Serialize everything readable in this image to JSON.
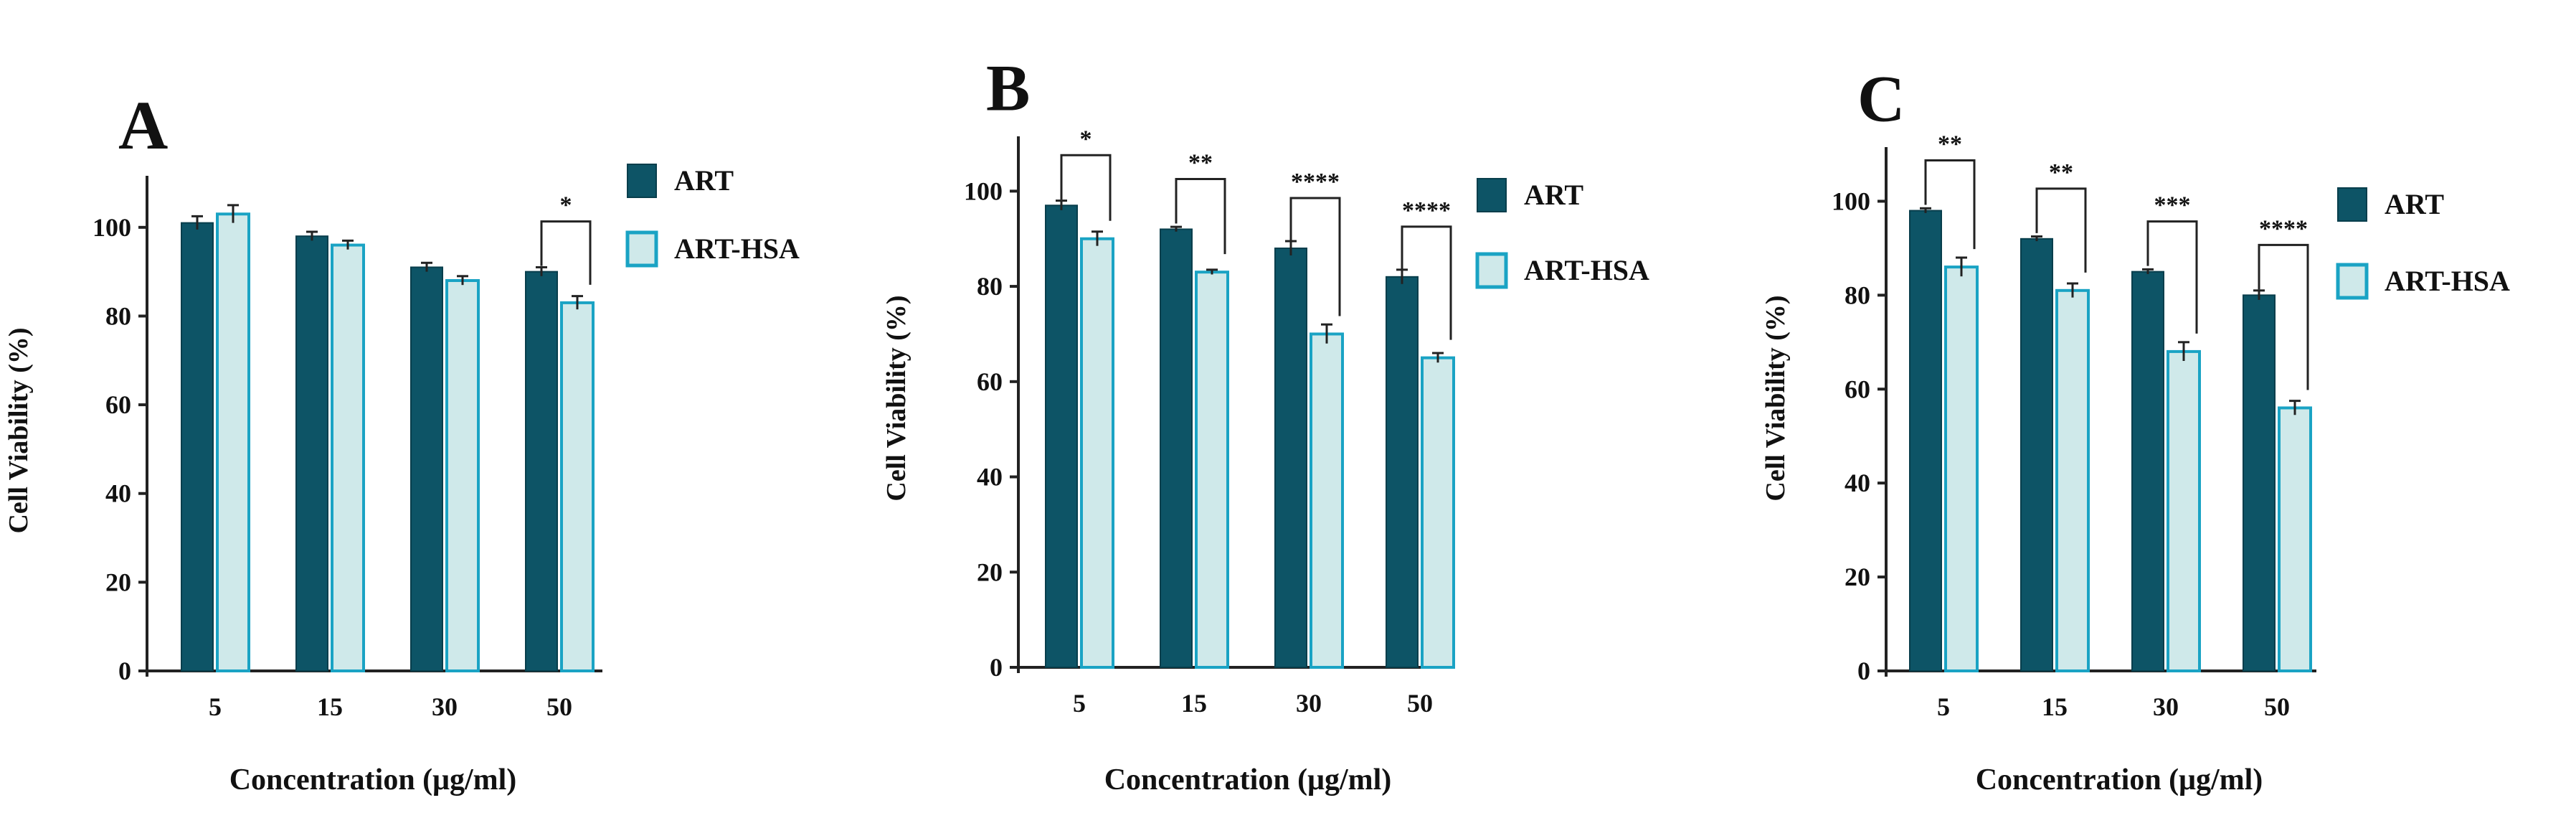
{
  "colors": {
    "art": "#0d5466",
    "art_edge": "#083e4c",
    "art_hsa_fill": "#cfe9ea",
    "art_hsa_edge": "#1aa3c4",
    "axis": "#222222",
    "text": "#111111"
  },
  "chart_data": [
    {
      "type": "bar",
      "panel": "A",
      "categories": [
        "5",
        "15",
        "30",
        "50"
      ],
      "series": [
        {
          "name": "ART",
          "values": [
            101,
            98,
            91,
            90
          ],
          "errors": [
            1.5,
            1,
            1,
            1
          ]
        },
        {
          "name": "ART-HSA",
          "values": [
            103,
            96,
            88,
            83
          ],
          "errors": [
            2,
            1,
            1,
            1.5
          ]
        }
      ],
      "xlabel": "Concentration (μg/ml)",
      "ylabel": "Cell Viability (%)",
      "ylim": [
        0,
        110
      ],
      "yticks": [
        "0",
        "20",
        "40",
        "60",
        "80",
        "100"
      ],
      "legend_position": "right",
      "significance": [
        {
          "category_index": 3,
          "label": "*"
        }
      ]
    },
    {
      "type": "bar",
      "panel": "B",
      "categories": [
        "5",
        "15",
        "30",
        "50"
      ],
      "series": [
        {
          "name": "ART",
          "values": [
            97,
            92,
            88,
            82
          ],
          "errors": [
            1,
            0.5,
            1.5,
            1.5
          ]
        },
        {
          "name": "ART-HSA",
          "values": [
            90,
            83,
            70,
            65
          ],
          "errors": [
            1.5,
            0.5,
            2,
            1
          ]
        }
      ],
      "xlabel": "Concentration (μg/ml)",
      "ylabel": "Cell Viability (%)",
      "ylim": [
        0,
        110
      ],
      "yticks": [
        "0",
        "20",
        "40",
        "60",
        "80",
        "100"
      ],
      "legend_position": "right",
      "significance": [
        {
          "category_index": 0,
          "label": "*"
        },
        {
          "category_index": 1,
          "label": "**"
        },
        {
          "category_index": 2,
          "label": "****"
        },
        {
          "category_index": 3,
          "label": "****"
        }
      ]
    },
    {
      "type": "bar",
      "panel": "C",
      "categories": [
        "5",
        "15",
        "30",
        "50"
      ],
      "series": [
        {
          "name": "ART",
          "values": [
            98,
            92,
            85,
            80
          ],
          "errors": [
            0.5,
            0.5,
            0.5,
            1
          ]
        },
        {
          "name": "ART-HSA",
          "values": [
            86,
            81,
            68,
            56
          ],
          "errors": [
            2,
            1.5,
            2,
            1.5
          ]
        }
      ],
      "xlabel": "Concentration (μg/ml)",
      "ylabel": "Cell Viability (%)",
      "ylim": [
        0,
        110
      ],
      "yticks": [
        "0",
        "20",
        "40",
        "60",
        "80",
        "100"
      ],
      "legend_position": "right",
      "significance": [
        {
          "category_index": 0,
          "label": "**"
        },
        {
          "category_index": 1,
          "label": "**"
        },
        {
          "category_index": 2,
          "label": "***"
        },
        {
          "category_index": 3,
          "label": "****"
        }
      ]
    }
  ]
}
